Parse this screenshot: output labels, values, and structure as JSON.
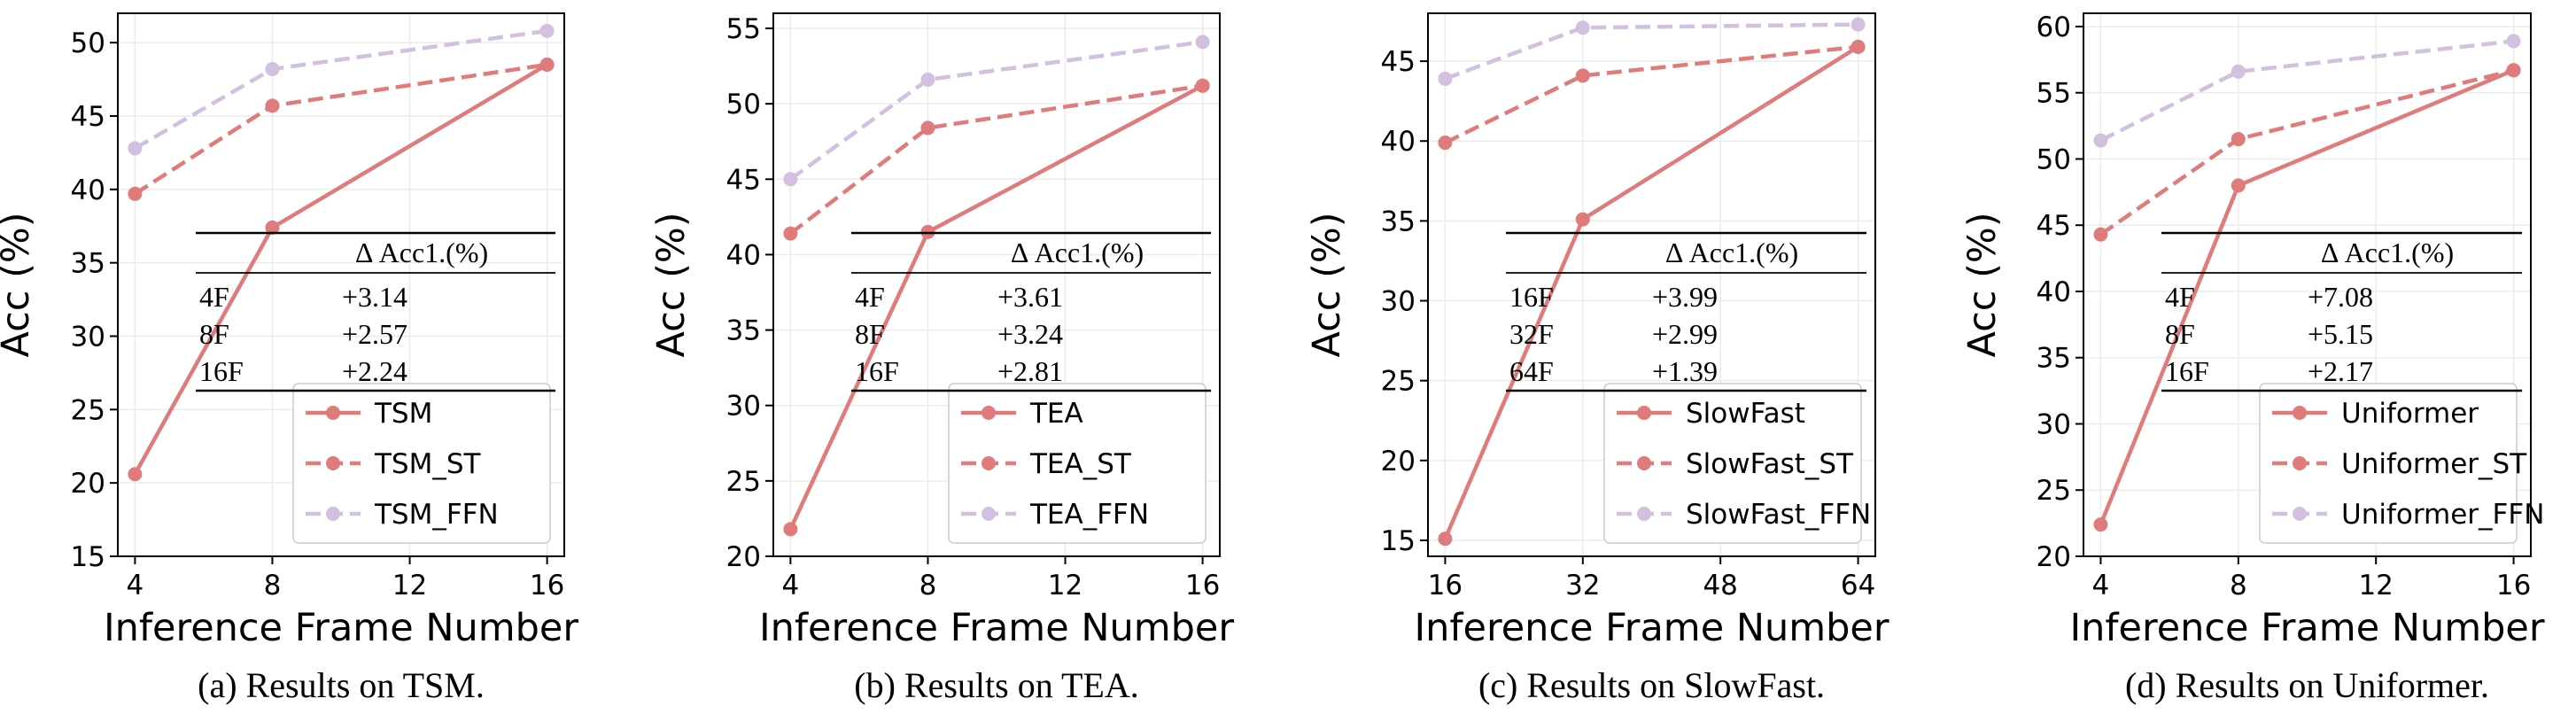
{
  "chart_data": [
    {
      "type": "line",
      "caption": "(a) Results on TSM.",
      "xlabel": "Inference Frame Number",
      "ylabel": "Acc (%)",
      "x": [
        4,
        8,
        16
      ],
      "xticks": [
        4,
        8,
        12,
        16
      ],
      "xlim": [
        3.5,
        16.5
      ],
      "yticks": [
        15,
        20,
        25,
        30,
        35,
        40,
        45,
        50
      ],
      "ylim": [
        15,
        52
      ],
      "grid": true,
      "legend": "lower-right",
      "series": [
        {
          "name": "TSM",
          "values": [
            20.6,
            37.4,
            48.5
          ],
          "color": "#e07b7b",
          "style": "solid"
        },
        {
          "name": "TSM_ST",
          "values": [
            39.7,
            45.7,
            48.5
          ],
          "color": "#e07b7b",
          "style": "dashed"
        },
        {
          "name": "TSM_FFN",
          "values": [
            42.8,
            48.2,
            50.8
          ],
          "color": "#d3bfdf",
          "style": "dashed"
        }
      ],
      "table": {
        "header": "Δ Acc1.(%)",
        "rows": [
          [
            "4F",
            "+3.14"
          ],
          [
            "8F",
            "+2.57"
          ],
          [
            "16F",
            "+2.24"
          ]
        ]
      }
    },
    {
      "type": "line",
      "caption": "(b) Results on TEA.",
      "xlabel": "Inference Frame Number",
      "ylabel": "Acc (%)",
      "x": [
        4,
        8,
        16
      ],
      "xticks": [
        4,
        8,
        12,
        16
      ],
      "xlim": [
        3.5,
        16.5
      ],
      "yticks": [
        20,
        25,
        30,
        35,
        40,
        45,
        50,
        55
      ],
      "ylim": [
        20,
        56
      ],
      "grid": true,
      "legend": "lower-right",
      "series": [
        {
          "name": "TEA",
          "values": [
            21.8,
            41.5,
            51.2
          ],
          "color": "#e07b7b",
          "style": "solid"
        },
        {
          "name": "TEA_ST",
          "values": [
            41.4,
            48.4,
            51.2
          ],
          "color": "#e07b7b",
          "style": "dashed"
        },
        {
          "name": "TEA_FFN",
          "values": [
            45.0,
            51.6,
            54.1
          ],
          "color": "#d3bfdf",
          "style": "dashed"
        }
      ],
      "table": {
        "header": "Δ Acc1.(%)",
        "rows": [
          [
            "4F",
            "+3.61"
          ],
          [
            "8F",
            "+3.24"
          ],
          [
            "16F",
            "+2.81"
          ]
        ]
      }
    },
    {
      "type": "line",
      "caption": "(c) Results on SlowFast.",
      "xlabel": "Inference Frame Number",
      "ylabel": "Acc (%)",
      "x": [
        16,
        32,
        64
      ],
      "xticks": [
        16,
        32,
        48,
        64
      ],
      "xlim": [
        14,
        66
      ],
      "yticks": [
        15,
        20,
        25,
        30,
        35,
        40,
        45
      ],
      "ylim": [
        14,
        48
      ],
      "grid": true,
      "legend": "lower-right",
      "series": [
        {
          "name": "SlowFast",
          "values": [
            15.1,
            35.1,
            45.9
          ],
          "color": "#e07b7b",
          "style": "solid"
        },
        {
          "name": "SlowFast_ST",
          "values": [
            39.9,
            44.1,
            45.9
          ],
          "color": "#e07b7b",
          "style": "dashed"
        },
        {
          "name": "SlowFast_FFN",
          "values": [
            43.9,
            47.1,
            47.3
          ],
          "color": "#d3bfdf",
          "style": "dashed"
        }
      ],
      "table": {
        "header": "Δ Acc1.(%)",
        "rows": [
          [
            "16F",
            "+3.99"
          ],
          [
            "32F",
            "+2.99"
          ],
          [
            "64F",
            "+1.39"
          ]
        ]
      }
    },
    {
      "type": "line",
      "caption": "(d) Results on Uniformer.",
      "xlabel": "Inference Frame Number",
      "ylabel": "Acc (%)",
      "x": [
        4,
        8,
        16
      ],
      "xticks": [
        4,
        8,
        12,
        16
      ],
      "xlim": [
        3.5,
        16.5
      ],
      "yticks": [
        20,
        25,
        30,
        35,
        40,
        45,
        50,
        55,
        60
      ],
      "ylim": [
        20,
        61
      ],
      "grid": true,
      "legend": "lower-right",
      "series": [
        {
          "name": "Uniformer",
          "values": [
            22.4,
            48.0,
            56.7
          ],
          "color": "#e07b7b",
          "style": "solid"
        },
        {
          "name": "Uniformer_ST",
          "values": [
            44.3,
            51.5,
            56.7
          ],
          "color": "#e07b7b",
          "style": "dashed"
        },
        {
          "name": "Uniformer_FFN",
          "values": [
            51.4,
            56.6,
            58.9
          ],
          "color": "#d3bfdf",
          "style": "dashed"
        }
      ],
      "table": {
        "header": "Δ Acc1.(%)",
        "rows": [
          [
            "4F",
            "+7.08"
          ],
          [
            "8F",
            "+5.15"
          ],
          [
            "16F",
            "+2.17"
          ]
        ]
      }
    }
  ]
}
